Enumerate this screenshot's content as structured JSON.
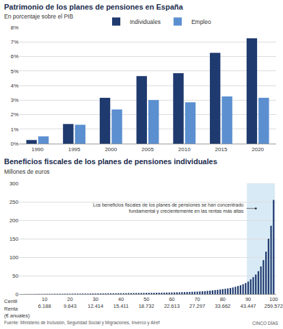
{
  "chart_data": [
    {
      "type": "bar",
      "title": "Patrimonio de los planes de pensiones en España",
      "subtitle": "En porcentaje sobre el PIB",
      "categories": [
        "1990",
        "1995",
        "2000",
        "2005",
        "2010",
        "2015",
        "2020"
      ],
      "series": [
        {
          "name": "Individuales",
          "color": "#1f3a6e",
          "values": [
            0.25,
            1.35,
            3.15,
            4.65,
            4.85,
            6.25,
            7.25
          ]
        },
        {
          "name": "Empleo",
          "color": "#5b8fd0",
          "values": [
            0.5,
            1.3,
            2.35,
            3.0,
            2.85,
            3.25,
            3.15
          ]
        }
      ],
      "ylim": [
        0,
        8
      ],
      "yticks": [
        {
          "value": 0,
          "label": "0%"
        },
        {
          "value": 1,
          "label": "1%"
        },
        {
          "value": 2,
          "label": "2%"
        },
        {
          "value": 3,
          "label": "3%"
        },
        {
          "value": 4,
          "label": "4%"
        },
        {
          "value": 5,
          "label": "5%"
        },
        {
          "value": 6,
          "label": "6%"
        },
        {
          "value": 7,
          "label": "7%"
        },
        {
          "value": 8,
          "label": "8%"
        }
      ],
      "grid": true,
      "legend": "top"
    },
    {
      "type": "bar",
      "title": "Beneficios fiscales de los planes de pensiones individuales",
      "subtitle": "Millones de euros",
      "x": [
        1,
        2,
        3,
        4,
        5,
        6,
        7,
        8,
        9,
        10,
        11,
        12,
        13,
        14,
        15,
        16,
        17,
        18,
        19,
        20,
        21,
        22,
        23,
        24,
        25,
        26,
        27,
        28,
        29,
        30,
        31,
        32,
        33,
        34,
        35,
        36,
        37,
        38,
        39,
        40,
        41,
        42,
        43,
        44,
        45,
        46,
        47,
        48,
        49,
        50,
        51,
        52,
        53,
        54,
        55,
        56,
        57,
        58,
        59,
        60,
        61,
        62,
        63,
        64,
        65,
        66,
        67,
        68,
        69,
        70,
        71,
        72,
        73,
        74,
        75,
        76,
        77,
        78,
        79,
        80,
        81,
        82,
        83,
        84,
        85,
        86,
        87,
        88,
        89,
        90,
        91,
        92,
        93,
        94,
        95,
        96,
        97,
        98,
        99,
        100
      ],
      "values": [
        0.2,
        0.3,
        0.3,
        0.4,
        0.4,
        0.5,
        0.5,
        0.6,
        0.6,
        0.7,
        0.7,
        0.8,
        0.8,
        0.9,
        0.9,
        1.0,
        1.0,
        1.1,
        1.1,
        1.2,
        1.2,
        1.3,
        1.3,
        1.4,
        1.4,
        1.5,
        1.5,
        1.6,
        1.7,
        1.7,
        1.8,
        1.9,
        1.9,
        2.0,
        2.1,
        2.2,
        2.2,
        2.3,
        2.4,
        2.4,
        2.5,
        2.6,
        2.7,
        2.8,
        2.9,
        3.0,
        3.0,
        3.1,
        3.2,
        3.3,
        3.4,
        3.5,
        3.6,
        3.7,
        3.8,
        3.9,
        4.0,
        4.1,
        4.3,
        4.4,
        4.6,
        4.8,
        5.0,
        5.2,
        5.4,
        5.7,
        5.9,
        6.2,
        6.5,
        6.8,
        7.2,
        7.7,
        8.2,
        8.8,
        9.4,
        10.1,
        10.9,
        11.7,
        12.6,
        13.5,
        14.5,
        15.5,
        16.5,
        18,
        20,
        22,
        24,
        27,
        30,
        34,
        40,
        46,
        53,
        62,
        75,
        92,
        115,
        150,
        185,
        255
      ],
      "color": "#1f3a6e",
      "xlim": [
        0,
        101
      ],
      "xticks": [
        10,
        20,
        30,
        40,
        50,
        60,
        70,
        80,
        90,
        100
      ],
      "income_labels": [
        "6.188",
        "9.643",
        "12.414",
        "15.411",
        "18.732",
        "22.613",
        "27.297",
        "33.662",
        "43.447",
        "259.572"
      ],
      "xtick_row_labels": [
        "Centil",
        "Renta",
        "(€ anuales)"
      ],
      "ylim": [
        0,
        300
      ],
      "yticks": [
        0,
        50,
        100,
        150,
        200,
        250,
        300
      ],
      "grid": true,
      "annotation": [
        "Los beneficios fiscales de los planes de pensiones se han concentrado",
        "fundamental y crecientemente en las rentas más altas"
      ],
      "highlight": {
        "x_range": [
          90,
          100
        ],
        "color": "#d8eaf5"
      }
    }
  ],
  "footer": {
    "source": "Fuente: Ministerio de Inclusión, Seguridad Social y Migraciones, Inverco y Airef",
    "brand": "CINCO DÍAS"
  }
}
